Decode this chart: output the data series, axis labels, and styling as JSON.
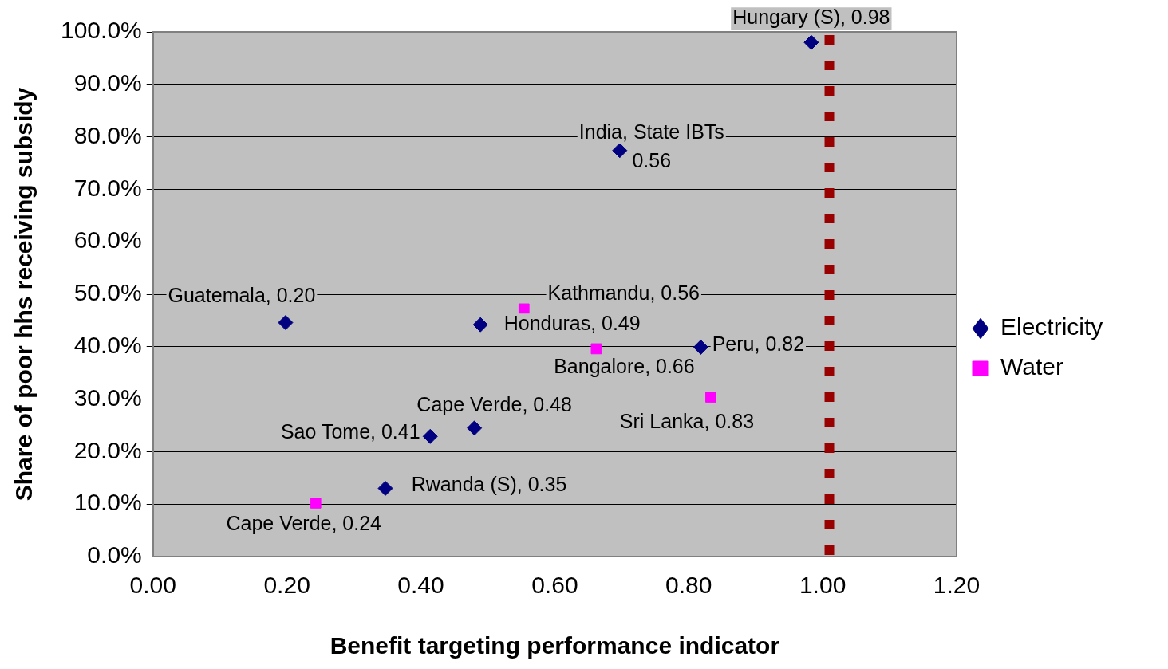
{
  "chart_data": {
    "type": "scatter",
    "xlabel": "Benefit targeting performance indicator",
    "ylabel": "Share of poor hhs receiving subsidy",
    "series": [
      {
        "name": "Electricity",
        "color": "#000080",
        "marker": "diamond",
        "x": [
          0.983,
          0.697,
          0.198,
          0.489,
          0.818,
          0.48,
          0.414,
          0.347
        ],
        "values": [
          98.0,
          77.4,
          44.6,
          44.2,
          39.9,
          24.5,
          22.9,
          13.0
        ]
      },
      {
        "name": "Water",
        "color": "#ff00ff",
        "marker": "square",
        "x": [
          0.554,
          0.662,
          0.833,
          0.243
        ],
        "values": [
          47.2,
          39.6,
          30.4,
          10.2
        ]
      }
    ],
    "annotations": [
      {
        "text": "Hungary (S), 0.98",
        "x": 0.983,
        "y": 98.0
      },
      {
        "text": "India, State IBTs\n0.56",
        "x": 0.697,
        "y": 77.4
      },
      {
        "text": "Guatemala, 0.20",
        "x": 0.198,
        "y": 44.6
      },
      {
        "text": "Honduras, 0.49",
        "x": 0.489,
        "y": 44.2
      },
      {
        "text": "Peru, 0.82",
        "x": 0.818,
        "y": 39.9
      },
      {
        "text": "Cape Verde, 0.48",
        "x": 0.48,
        "y": 24.5
      },
      {
        "text": "Sao Tome, 0.41",
        "x": 0.414,
        "y": 22.9
      },
      {
        "text": "Rwanda (S), 0.35",
        "x": 0.347,
        "y": 13.0
      },
      {
        "text": "Kathmandu, 0.56",
        "x": 0.554,
        "y": 47.2
      },
      {
        "text": "Bangalore, 0.66",
        "x": 0.662,
        "y": 39.6
      },
      {
        "text": "Sri Lanka, 0.83",
        "x": 0.833,
        "y": 30.4
      },
      {
        "text": "Cape Verde, 0.24",
        "x": 0.243,
        "y": 10.2
      }
    ],
    "ref_lines": [
      {
        "axis": "x",
        "value": 1.01,
        "color": "#990000",
        "line_style": "dashed"
      }
    ],
    "xlim": [
      0,
      1.2
    ],
    "xticks": [
      {
        "value": 0,
        "label": "0.00"
      },
      {
        "value": 0.2,
        "label": "0.20"
      },
      {
        "value": 0.4,
        "label": "0.40"
      },
      {
        "value": 0.6,
        "label": "0.60"
      },
      {
        "value": 0.8,
        "label": "0.80"
      },
      {
        "value": 1.0,
        "label": "1.00"
      },
      {
        "value": 1.2,
        "label": "1.20"
      }
    ],
    "ylim": [
      0,
      100
    ],
    "yticks": [
      {
        "value": 0,
        "label": "0.0%"
      },
      {
        "value": 10,
        "label": "10.0%"
      },
      {
        "value": 20,
        "label": "20.0%"
      },
      {
        "value": 30,
        "label": "30.0%"
      },
      {
        "value": 40,
        "label": "40.0%"
      },
      {
        "value": 50,
        "label": "50.0%"
      },
      {
        "value": 60,
        "label": "60.0%"
      },
      {
        "value": 70,
        "label": "70.0%"
      },
      {
        "value": 80,
        "label": "80.0%"
      },
      {
        "value": 90,
        "label": "90.0%"
      },
      {
        "value": 100,
        "label": "100.0%"
      }
    ],
    "grid": "y",
    "legend": "right"
  }
}
